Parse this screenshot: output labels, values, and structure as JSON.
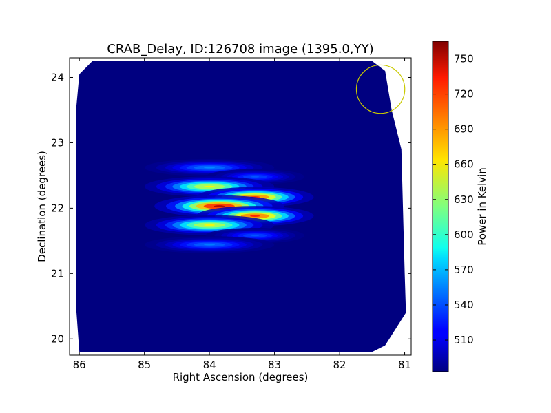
{
  "chart_data": {
    "type": "heatmap",
    "title": "CRAB_Delay, ID:126708 image (1395.0,YY)",
    "xlabel": "Right Ascension (degrees)",
    "ylabel": "Declination (degrees)",
    "xlim": [
      86.15,
      80.9
    ],
    "ylim": [
      19.75,
      24.3
    ],
    "x_ticks": [
      86,
      85,
      84,
      83,
      82,
      81
    ],
    "y_ticks": [
      20,
      21,
      22,
      23,
      24
    ],
    "colorbar": {
      "label": "Power in Kelvin",
      "range": [
        483,
        765
      ],
      "ticks": [
        510,
        540,
        570,
        600,
        630,
        660,
        690,
        720,
        750
      ],
      "colormap": "jet"
    },
    "background_value": 483,
    "field_outline": [
      [
        86.0,
        24.05
      ],
      [
        85.8,
        24.25
      ],
      [
        81.5,
        24.25
      ],
      [
        81.3,
        24.1
      ],
      [
        81.2,
        23.5
      ],
      [
        81.05,
        22.9
      ],
      [
        81.0,
        21.0
      ],
      [
        80.98,
        20.4
      ],
      [
        81.3,
        19.9
      ],
      [
        81.5,
        19.8
      ],
      [
        86.0,
        19.8
      ],
      [
        86.05,
        20.5
      ],
      [
        86.05,
        23.5
      ]
    ],
    "sources": [
      {
        "ra": 84.0,
        "dec": 22.62,
        "peak": 560,
        "sigma_ra": 0.42,
        "sigma_dec": 0.055
      },
      {
        "ra": 83.3,
        "dec": 22.48,
        "peak": 545,
        "sigma_ra": 0.32,
        "sigma_dec": 0.05
      },
      {
        "ra": 84.0,
        "dec": 22.33,
        "peak": 665,
        "sigma_ra": 0.42,
        "sigma_dec": 0.065
      },
      {
        "ra": 83.3,
        "dec": 22.17,
        "peak": 725,
        "sigma_ra": 0.38,
        "sigma_dec": 0.065
      },
      {
        "ra": 83.85,
        "dec": 22.03,
        "peak": 760,
        "sigma_ra": 0.42,
        "sigma_dec": 0.07
      },
      {
        "ra": 83.3,
        "dec": 21.88,
        "peak": 730,
        "sigma_ra": 0.38,
        "sigma_dec": 0.065
      },
      {
        "ra": 84.0,
        "dec": 21.74,
        "peak": 665,
        "sigma_ra": 0.42,
        "sigma_dec": 0.065
      },
      {
        "ra": 83.3,
        "dec": 21.58,
        "peak": 545,
        "sigma_ra": 0.32,
        "sigma_dec": 0.05
      },
      {
        "ra": 84.0,
        "dec": 21.44,
        "peak": 555,
        "sigma_ra": 0.42,
        "sigma_dec": 0.055
      }
    ],
    "beam_circle": {
      "ra": 81.37,
      "dec": 23.82,
      "radius_deg": 0.37,
      "color": "#c9c900"
    },
    "grid": false
  }
}
